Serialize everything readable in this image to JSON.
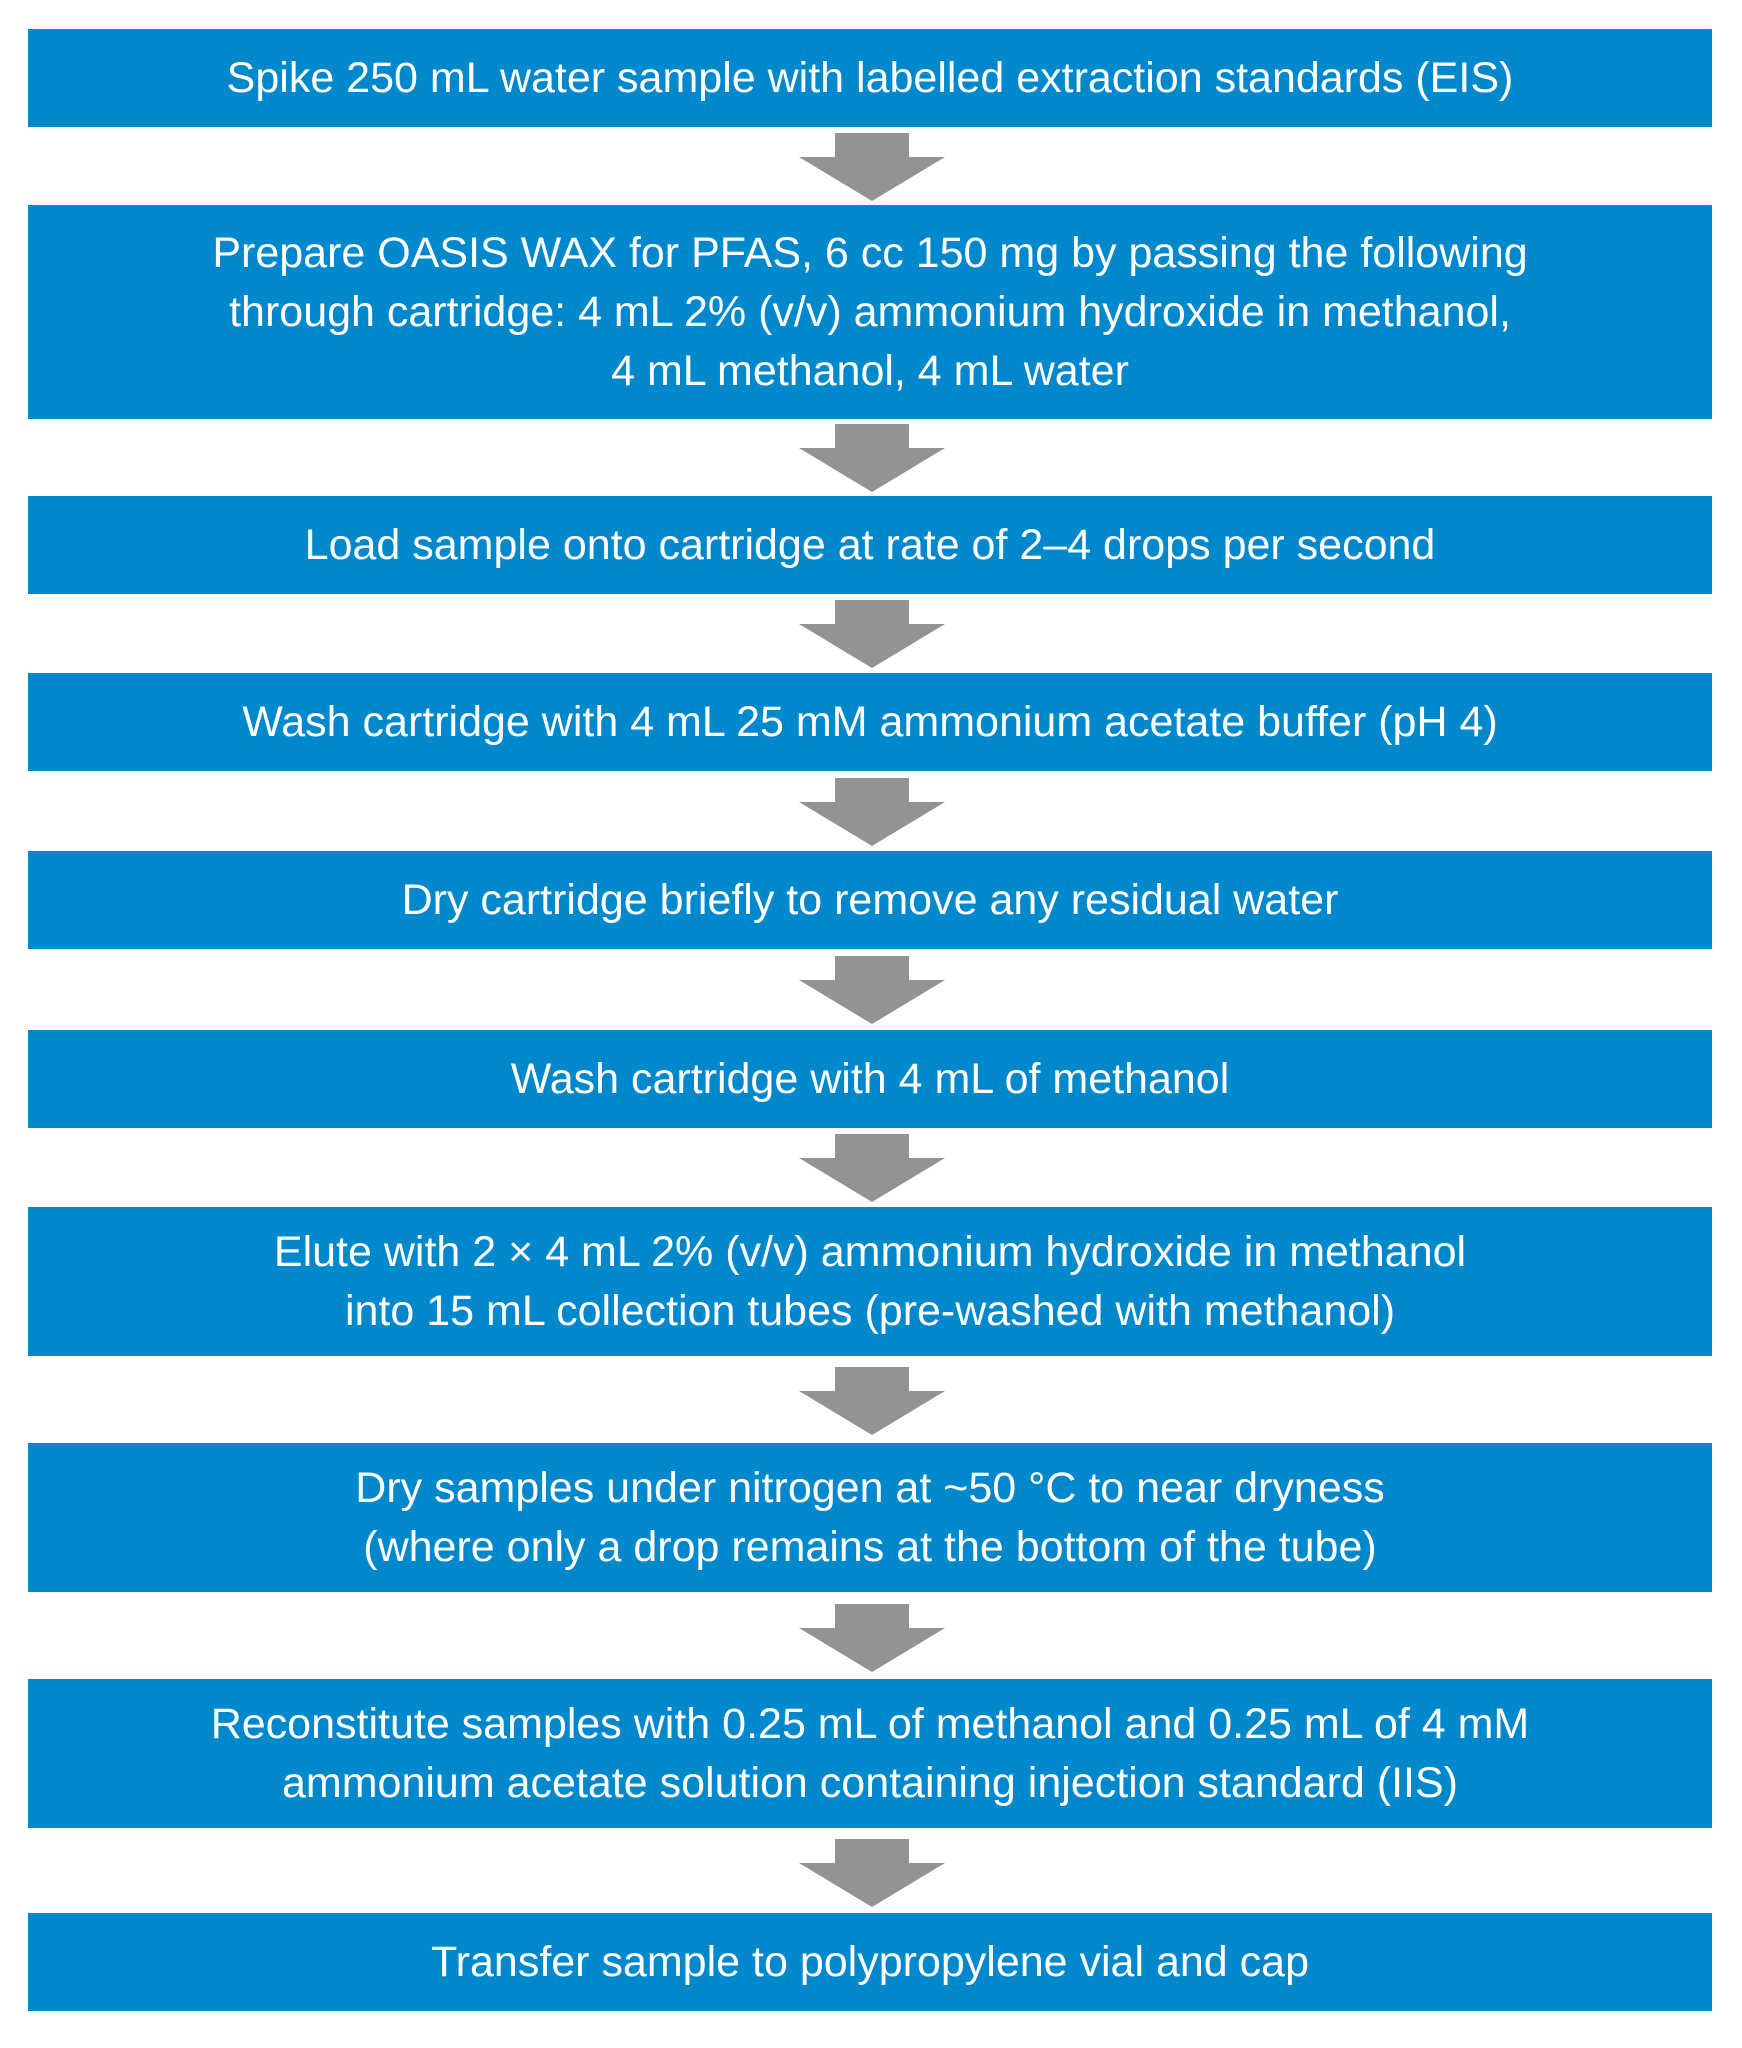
{
  "steps": [
    "Spike 250 mL water sample with labelled extraction standards (EIS)",
    "Prepare OASIS WAX for PFAS, 6 cc 150 mg by passing the following\nthrough cartridge: 4 mL 2% (v/v) ammonium hydroxide in methanol,\n4 mL methanol, 4 mL water",
    "Load sample onto cartridge at rate of 2–4 drops per second",
    "Wash cartridge with 4 mL 25 mM ammonium acetate buffer (pH 4)",
    "Dry cartridge briefly to remove any residual water",
    "Wash cartridge with 4 mL of methanol",
    "Elute with 2 × 4 mL 2% (v/v) ammonium hydroxide in methanol\ninto 15 mL collection tubes (pre-washed with methanol)",
    "Dry samples under nitrogen at ~50 °C to near dryness\n(where only a drop remains at the bottom of the tube)",
    "Reconstitute samples with 0.25 mL of methanol and 0.25 mL of 4 mM\nammonium acetate solution containing injection standard (IIS)",
    "Transfer sample to polypropylene vial and cap"
  ],
  "colors": {
    "box_fill": "#0088cc",
    "box_text": "#ffffff",
    "arrow_fill": "#939393"
  }
}
